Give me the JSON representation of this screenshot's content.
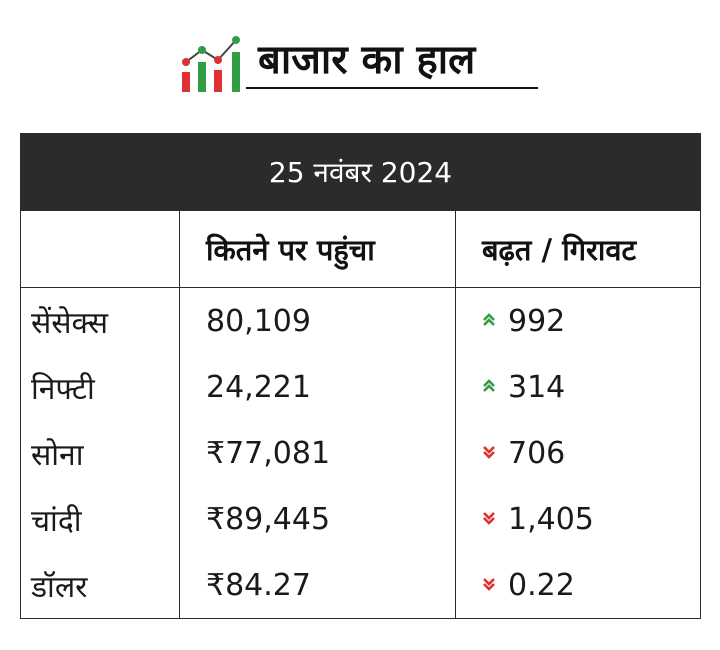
{
  "header": {
    "title": "बाजार का हाल",
    "logo_icon": "market-chart-icon",
    "logo_colors": {
      "red": "#e03131",
      "green": "#2f9e44"
    }
  },
  "table": {
    "date": "25 नवंबर 2024",
    "columns": [
      "",
      "कितने पर पहुंचा",
      "बढ़त / गिरावट"
    ],
    "rows": [
      {
        "name": "सेंसेक्स",
        "value": "80,109",
        "direction": "up",
        "change": "992"
      },
      {
        "name": "निफ्टी",
        "value": "24,221",
        "direction": "up",
        "change": "314"
      },
      {
        "name": "सोना",
        "value": "₹77,081",
        "direction": "down",
        "change": "706"
      },
      {
        "name": "चांदी",
        "value": "₹89,445",
        "direction": "down",
        "change": "1,405"
      },
      {
        "name": "डॉलर",
        "value": "₹84.27",
        "direction": "down",
        "change": "0.22"
      }
    ],
    "colors": {
      "header_bg": "#2b2b2b",
      "up": "#2f9e44",
      "down": "#e03131"
    }
  }
}
